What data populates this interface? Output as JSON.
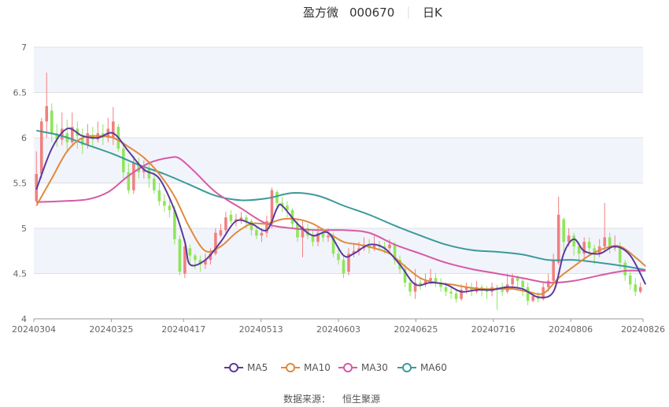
{
  "header": {
    "stock_name": "盈方微",
    "stock_code": "000670",
    "period_label": "日K"
  },
  "source_label": "数据来源：",
  "source_name": "恒生聚源",
  "colors": {
    "up": "#f08080",
    "down": "#8ee65a",
    "ma5": "#5b3a9e",
    "ma10": "#e08a3c",
    "ma30": "#d65aa6",
    "ma60": "#3a9a9a",
    "band": "#f2f4fb",
    "grid": "#e0e0e0"
  },
  "chart_data": {
    "type": "candlestick",
    "title": "盈方微 000670 日K",
    "ylim": [
      4,
      7
    ],
    "yticks": [
      "4",
      "4.5",
      "5",
      "5.5",
      "6",
      "6.5",
      "7"
    ],
    "x_tick_labels": [
      "20240304",
      "20240325",
      "20240417",
      "20240513",
      "20240603",
      "20240625",
      "20240716",
      "20240806",
      "20240826"
    ],
    "x_tick_index": [
      0,
      15,
      29,
      44,
      59,
      74,
      89,
      104,
      119
    ],
    "grid": true,
    "legend_position": "bottom",
    "legend": [
      {
        "name": "MA5",
        "color": "#5b3a9e"
      },
      {
        "name": "MA10",
        "color": "#e08a3c"
      },
      {
        "name": "MA30",
        "color": "#d65aa6"
      },
      {
        "name": "MA60",
        "color": "#3a9a9a"
      }
    ],
    "candles": [
      [
        5.3,
        5.6,
        5.85,
        5.28
      ],
      [
        5.6,
        6.18,
        6.22,
        5.55
      ],
      [
        6.18,
        6.35,
        6.72,
        6.0
      ],
      [
        6.3,
        6.05,
        6.38,
        5.95
      ],
      [
        6.05,
        5.98,
        6.15,
        5.9
      ],
      [
        5.98,
        6.1,
        6.28,
        5.92
      ],
      [
        6.05,
        5.95,
        6.2,
        5.85
      ],
      [
        5.95,
        6.12,
        6.28,
        5.9
      ],
      [
        6.1,
        6.02,
        6.18,
        5.88
      ],
      [
        6.0,
        5.92,
        6.1,
        5.82
      ],
      [
        5.92,
        6.05,
        6.15,
        5.88
      ],
      [
        6.02,
        5.98,
        6.12,
        5.9
      ],
      [
        5.98,
        6.05,
        6.18,
        5.95
      ],
      [
        6.05,
        6.0,
        6.15,
        5.92
      ],
      [
        6.0,
        6.1,
        6.22,
        5.95
      ],
      [
        6.0,
        6.18,
        6.34,
        5.92
      ],
      [
        6.12,
        5.88,
        6.15,
        5.85
      ],
      [
        5.88,
        5.62,
        5.95,
        5.55
      ],
      [
        5.62,
        5.42,
        5.72,
        5.38
      ],
      [
        5.42,
        5.72,
        5.8,
        5.38
      ],
      [
        5.7,
        5.62,
        5.78,
        5.55
      ],
      [
        5.62,
        5.66,
        5.75,
        5.55
      ],
      [
        5.66,
        5.55,
        5.72,
        5.45
      ],
      [
        5.55,
        5.42,
        5.62,
        5.38
      ],
      [
        5.42,
        5.3,
        5.5,
        5.25
      ],
      [
        5.3,
        5.25,
        5.38,
        5.18
      ],
      [
        5.25,
        5.2,
        5.32,
        5.12
      ],
      [
        5.2,
        4.88,
        5.25,
        4.82
      ],
      [
        4.88,
        4.52,
        4.92,
        4.48
      ],
      [
        4.5,
        4.8,
        4.88,
        4.45
      ],
      [
        4.78,
        4.7,
        4.82,
        4.62
      ],
      [
        4.7,
        4.65,
        4.72,
        4.55
      ],
      [
        4.65,
        4.6,
        4.7,
        4.52
      ],
      [
        4.6,
        4.65,
        4.72,
        4.55
      ],
      [
        4.65,
        4.72,
        4.78,
        4.6
      ],
      [
        4.72,
        4.95,
        5.0,
        4.7
      ],
      [
        4.92,
        4.98,
        5.05,
        4.9
      ],
      [
        4.98,
        5.12,
        5.18,
        4.95
      ],
      [
        5.15,
        5.08,
        5.2,
        5.05
      ],
      [
        5.08,
        5.1,
        5.16,
        5.02
      ],
      [
        5.1,
        5.12,
        5.18,
        5.05
      ],
      [
        5.12,
        5.08,
        5.15,
        5.0
      ],
      [
        5.08,
        4.98,
        5.1,
        4.92
      ],
      [
        4.98,
        4.92,
        5.02,
        4.88
      ],
      [
        4.92,
        4.95,
        5.0,
        4.85
      ],
      [
        4.95,
        5.08,
        5.14,
        4.9
      ],
      [
        5.05,
        5.42,
        5.45,
        5.0
      ],
      [
        5.4,
        5.28,
        5.42,
        5.2
      ],
      [
        5.28,
        5.25,
        5.35,
        5.18
      ],
      [
        5.25,
        5.2,
        5.3,
        5.12
      ],
      [
        5.2,
        5.05,
        5.22,
        5.0
      ],
      [
        5.05,
        4.9,
        5.1,
        4.85
      ],
      [
        4.9,
        5.02,
        5.08,
        4.68
      ],
      [
        5.0,
        4.92,
        5.05,
        4.88
      ],
      [
        4.92,
        4.85,
        4.98,
        4.8
      ],
      [
        4.85,
        4.95,
        5.02,
        4.8
      ],
      [
        4.95,
        4.9,
        5.0,
        4.85
      ],
      [
        4.9,
        4.92,
        5.0,
        4.85
      ],
      [
        4.92,
        4.72,
        4.95,
        4.68
      ],
      [
        4.72,
        4.65,
        4.8,
        4.6
      ],
      [
        4.65,
        4.5,
        4.7,
        4.45
      ],
      [
        4.52,
        4.72,
        4.78,
        4.48
      ],
      [
        4.72,
        4.75,
        4.82,
        4.68
      ],
      [
        4.75,
        4.78,
        4.85,
        4.7
      ],
      [
        4.78,
        4.82,
        4.9,
        4.75
      ],
      [
        4.82,
        4.78,
        4.88,
        4.72
      ],
      [
        4.78,
        4.82,
        4.92,
        4.75
      ],
      [
        4.82,
        4.8,
        4.86,
        4.75
      ],
      [
        4.8,
        4.78,
        4.85,
        4.72
      ],
      [
        4.78,
        4.82,
        4.88,
        4.75
      ],
      [
        4.82,
        4.65,
        4.85,
        4.6
      ],
      [
        4.65,
        4.55,
        4.7,
        4.5
      ],
      [
        4.55,
        4.4,
        4.6,
        4.35
      ],
      [
        4.4,
        4.3,
        4.45,
        4.25
      ],
      [
        4.3,
        4.4,
        4.55,
        4.22
      ],
      [
        4.4,
        4.38,
        4.45,
        4.32
      ],
      [
        4.38,
        4.42,
        4.5,
        4.35
      ],
      [
        4.42,
        4.45,
        4.55,
        4.38
      ],
      [
        4.45,
        4.4,
        4.5,
        4.35
      ],
      [
        4.4,
        4.35,
        4.45,
        4.3
      ],
      [
        4.35,
        4.3,
        4.4,
        4.25
      ],
      [
        4.3,
        4.28,
        4.35,
        4.22
      ],
      [
        4.28,
        4.22,
        4.32,
        4.18
      ],
      [
        4.22,
        4.32,
        4.38,
        4.2
      ],
      [
        4.32,
        4.35,
        4.4,
        4.28
      ],
      [
        4.35,
        4.3,
        4.4,
        4.25
      ],
      [
        4.3,
        4.35,
        4.42,
        4.28
      ],
      [
        4.35,
        4.32,
        4.38,
        4.25
      ],
      [
        4.32,
        4.3,
        4.36,
        4.22
      ],
      [
        4.3,
        4.35,
        4.4,
        4.25
      ],
      [
        4.35,
        4.32,
        4.38,
        4.1
      ],
      [
        4.32,
        4.3,
        4.4,
        4.25
      ],
      [
        4.3,
        4.38,
        4.5,
        4.28
      ],
      [
        4.38,
        4.45,
        4.5,
        4.35
      ],
      [
        4.45,
        4.42,
        4.48,
        4.35
      ],
      [
        4.42,
        4.35,
        4.45,
        4.25
      ],
      [
        4.35,
        4.2,
        4.4,
        4.15
      ],
      [
        4.2,
        4.25,
        4.3,
        4.18
      ],
      [
        4.25,
        4.22,
        4.3,
        4.18
      ],
      [
        4.22,
        4.35,
        4.4,
        4.2
      ],
      [
        4.35,
        4.42,
        4.5,
        4.3
      ],
      [
        4.42,
        4.65,
        4.72,
        4.4
      ],
      [
        4.62,
        5.15,
        5.35,
        4.6
      ],
      [
        5.1,
        4.85,
        5.12,
        4.75
      ],
      [
        4.85,
        4.92,
        5.0,
        4.8
      ],
      [
        4.92,
        4.8,
        4.95,
        4.7
      ],
      [
        4.8,
        4.72,
        4.85,
        4.65
      ],
      [
        4.72,
        4.85,
        4.9,
        4.65
      ],
      [
        4.85,
        4.78,
        4.9,
        4.7
      ],
      [
        4.78,
        4.72,
        4.82,
        4.6
      ],
      [
        4.72,
        4.8,
        4.88,
        4.68
      ],
      [
        4.8,
        4.9,
        5.28,
        4.75
      ],
      [
        4.9,
        4.78,
        4.95,
        4.72
      ],
      [
        4.78,
        4.8,
        4.92,
        4.75
      ],
      [
        4.8,
        4.62,
        4.85,
        4.55
      ],
      [
        4.62,
        4.48,
        4.65,
        4.42
      ],
      [
        4.48,
        4.38,
        4.52,
        4.32
      ],
      [
        4.38,
        4.3,
        4.45,
        4.25
      ],
      [
        4.3,
        4.35,
        4.4,
        4.28
      ]
    ],
    "ma_series": [
      {
        "name": "MA5",
        "points": [
          [
            0,
            5.43
          ],
          [
            3,
            5.88
          ],
          [
            6,
            6.1
          ],
          [
            9,
            6.02
          ],
          [
            12,
            6.0
          ],
          [
            15,
            6.05
          ],
          [
            18,
            5.85
          ],
          [
            21,
            5.65
          ],
          [
            24,
            5.55
          ],
          [
            27,
            5.2
          ],
          [
            29,
            4.85
          ],
          [
            30,
            4.6
          ],
          [
            33,
            4.65
          ],
          [
            36,
            4.85
          ],
          [
            39,
            5.08
          ],
          [
            42,
            5.05
          ],
          [
            45,
            4.98
          ],
          [
            47,
            5.22
          ],
          [
            48,
            5.25
          ],
          [
            51,
            5.05
          ],
          [
            54,
            4.92
          ],
          [
            57,
            4.95
          ],
          [
            60,
            4.7
          ],
          [
            62,
            4.72
          ],
          [
            65,
            4.82
          ],
          [
            68,
            4.78
          ],
          [
            71,
            4.6
          ],
          [
            74,
            4.38
          ],
          [
            77,
            4.4
          ],
          [
            80,
            4.38
          ],
          [
            83,
            4.3
          ],
          [
            86,
            4.32
          ],
          [
            89,
            4.32
          ],
          [
            92,
            4.35
          ],
          [
            95,
            4.33
          ],
          [
            98,
            4.24
          ],
          [
            101,
            4.3
          ],
          [
            103,
            4.72
          ],
          [
            105,
            4.88
          ],
          [
            107,
            4.75
          ],
          [
            110,
            4.72
          ],
          [
            113,
            4.8
          ],
          [
            116,
            4.7
          ],
          [
            119,
            4.38
          ]
        ]
      },
      {
        "name": "MA10",
        "points": [
          [
            0,
            5.25
          ],
          [
            3,
            5.55
          ],
          [
            6,
            5.85
          ],
          [
            9,
            6.0
          ],
          [
            12,
            6.02
          ],
          [
            15,
            6.0
          ],
          [
            18,
            5.9
          ],
          [
            21,
            5.78
          ],
          [
            24,
            5.6
          ],
          [
            27,
            5.35
          ],
          [
            30,
            5.0
          ],
          [
            33,
            4.75
          ],
          [
            36,
            4.8
          ],
          [
            39,
            4.95
          ],
          [
            42,
            5.05
          ],
          [
            45,
            5.05
          ],
          [
            48,
            5.1
          ],
          [
            51,
            5.1
          ],
          [
            54,
            5.05
          ],
          [
            57,
            4.95
          ],
          [
            60,
            4.85
          ],
          [
            63,
            4.82
          ],
          [
            66,
            4.78
          ],
          [
            69,
            4.72
          ],
          [
            72,
            4.58
          ],
          [
            75,
            4.45
          ],
          [
            78,
            4.4
          ],
          [
            81,
            4.38
          ],
          [
            84,
            4.35
          ],
          [
            87,
            4.33
          ],
          [
            90,
            4.33
          ],
          [
            93,
            4.33
          ],
          [
            96,
            4.3
          ],
          [
            99,
            4.28
          ],
          [
            102,
            4.45
          ],
          [
            105,
            4.58
          ],
          [
            108,
            4.7
          ],
          [
            111,
            4.78
          ],
          [
            114,
            4.8
          ],
          [
            117,
            4.68
          ],
          [
            119,
            4.58
          ]
        ]
      },
      {
        "name": "MA30",
        "points": [
          [
            0,
            5.29
          ],
          [
            5,
            5.3
          ],
          [
            10,
            5.32
          ],
          [
            14,
            5.4
          ],
          [
            18,
            5.58
          ],
          [
            22,
            5.72
          ],
          [
            26,
            5.78
          ],
          [
            28,
            5.77
          ],
          [
            31,
            5.62
          ],
          [
            35,
            5.4
          ],
          [
            40,
            5.22
          ],
          [
            45,
            5.05
          ],
          [
            50,
            5.0
          ],
          [
            55,
            4.98
          ],
          [
            60,
            4.98
          ],
          [
            65,
            4.95
          ],
          [
            70,
            4.82
          ],
          [
            75,
            4.72
          ],
          [
            80,
            4.62
          ],
          [
            85,
            4.55
          ],
          [
            90,
            4.5
          ],
          [
            95,
            4.45
          ],
          [
            100,
            4.4
          ],
          [
            105,
            4.42
          ],
          [
            110,
            4.48
          ],
          [
            115,
            4.53
          ],
          [
            119,
            4.53
          ]
        ]
      },
      {
        "name": "MA60",
        "points": [
          [
            0,
            6.08
          ],
          [
            5,
            6.02
          ],
          [
            10,
            5.92
          ],
          [
            15,
            5.82
          ],
          [
            20,
            5.7
          ],
          [
            25,
            5.6
          ],
          [
            30,
            5.48
          ],
          [
            35,
            5.36
          ],
          [
            40,
            5.31
          ],
          [
            45,
            5.33
          ],
          [
            50,
            5.39
          ],
          [
            55,
            5.36
          ],
          [
            60,
            5.25
          ],
          [
            65,
            5.15
          ],
          [
            70,
            5.03
          ],
          [
            75,
            4.92
          ],
          [
            80,
            4.82
          ],
          [
            85,
            4.76
          ],
          [
            90,
            4.74
          ],
          [
            95,
            4.71
          ],
          [
            100,
            4.65
          ],
          [
            105,
            4.65
          ],
          [
            110,
            4.62
          ],
          [
            115,
            4.58
          ],
          [
            119,
            4.54
          ]
        ]
      }
    ]
  }
}
